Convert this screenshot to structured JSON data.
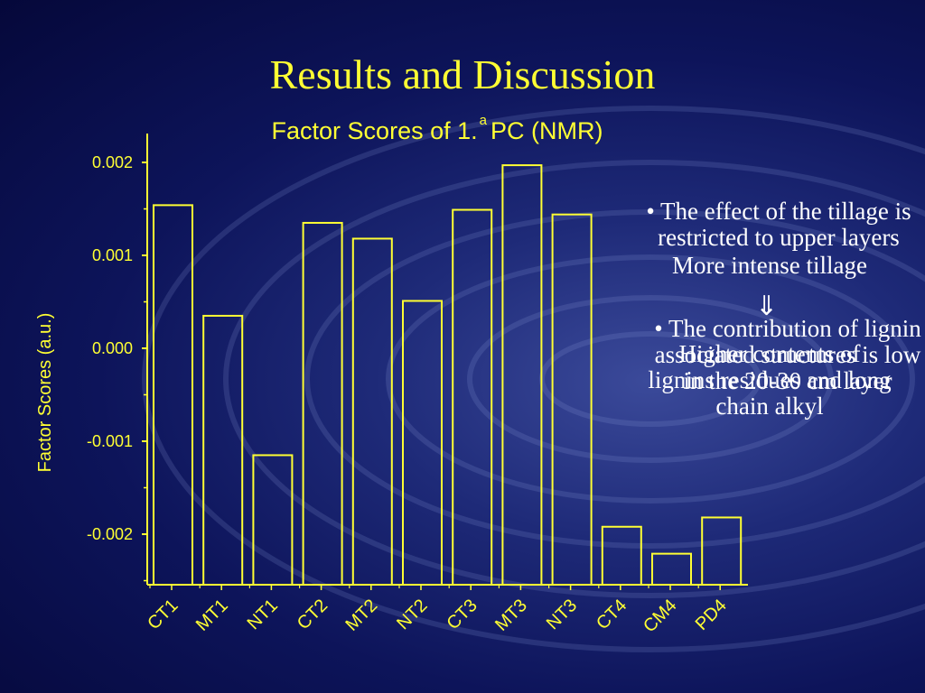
{
  "slide": {
    "title": "Results and Discussion"
  },
  "chart_data": {
    "type": "bar",
    "title_prefix": "Factor Scores of 1.",
    "title_sup": "a",
    "title_suffix": "PC (NMR)",
    "ylabel": "Factor Scores (a.u.)",
    "xlabel": "",
    "categories": [
      "CT1",
      "MT1",
      "NT1",
      "CT2",
      "MT2",
      "NT2",
      "CT3",
      "MT3",
      "NT3",
      "CT4",
      "CM4",
      "PD4"
    ],
    "values": [
      0.00154,
      0.00035,
      -0.00115,
      0.00135,
      0.00118,
      0.00051,
      0.00149,
      0.00197,
      0.00144,
      -0.00192,
      -0.00221,
      -0.00182
    ],
    "ylim": [
      -0.0025,
      0.0022
    ],
    "yticks": [
      "0.002",
      "0.001",
      "0.000",
      "-0.001",
      "-0.002"
    ],
    "ytick_values": [
      0.002,
      0.001,
      0.0,
      -0.001,
      -0.002
    ],
    "grid": false,
    "color": "#ffff33"
  },
  "notes": {
    "effect_1": "• The effect of the tillage is restricted to upper layers",
    "intense": "More intense tillage",
    "arrow": "⇓",
    "contribution": "• The contribution of lignin associated structures is low in the 20-30 cm layer",
    "higher": "Higher contents of lignins residues and long chain alkyl"
  },
  "colors": {
    "accent": "#ffff33",
    "text": "#ffffff"
  }
}
